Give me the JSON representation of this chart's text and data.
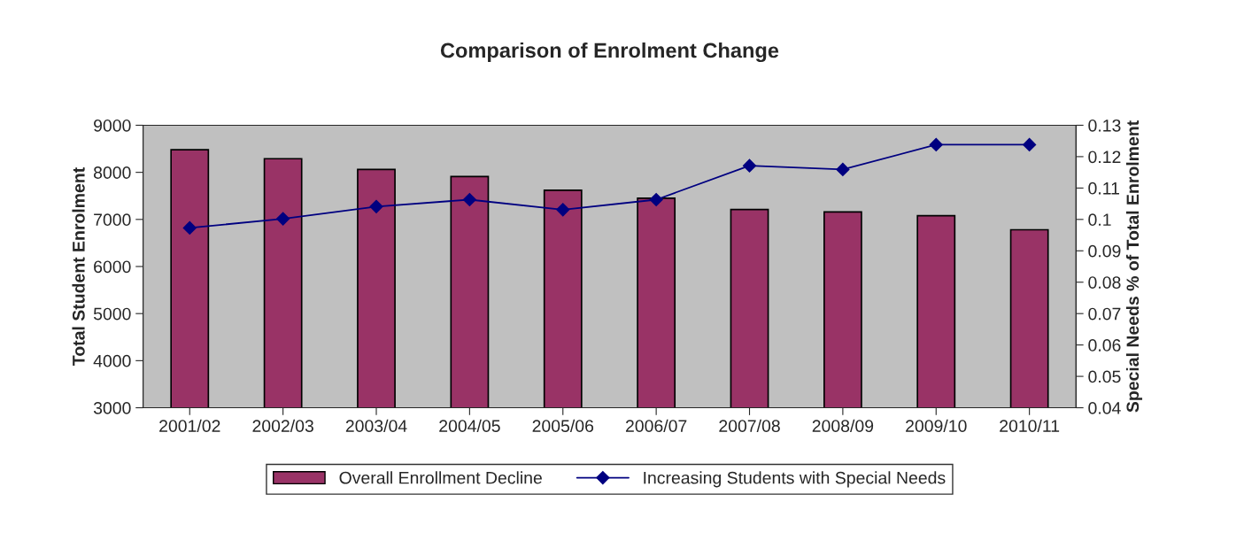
{
  "chart_data": {
    "type": "bar",
    "title": "Comparison of Enrolment Change",
    "ylabel": "Total Student Enrolment",
    "y2label": "Special Needs % of Total Enrolment",
    "categories": [
      "2001/02",
      "2002/03",
      "2003/04",
      "2004/05",
      "2005/06",
      "2006/07",
      "2007/08",
      "2008/09",
      "2009/10",
      "2010/11"
    ],
    "series": [
      {
        "name": "Overall Enrollment Decline",
        "color": "#993366",
        "values": [
          8480,
          8290,
          8060,
          7910,
          7620,
          7450,
          7210,
          7160,
          7080,
          6780
        ]
      },
      {
        "name": "Increasing Students with Special Needs",
        "type": "line",
        "axis": "y2",
        "color": "#000080",
        "marker": "diamond",
        "values": [
          0.0973,
          0.1002,
          0.1041,
          0.1063,
          0.1031,
          0.1063,
          0.1171,
          0.1159,
          0.1238,
          0.1238
        ]
      }
    ],
    "ylim": [
      3000,
      9000
    ],
    "yticks": [
      3000,
      4000,
      5000,
      6000,
      7000,
      8000,
      9000
    ],
    "y2lim": [
      0.04,
      0.13
    ],
    "y2ticks": [
      0.04,
      0.05,
      0.06,
      0.07,
      0.08,
      0.09,
      0.1,
      0.11,
      0.12,
      0.13
    ],
    "grid": false,
    "legend": "bottom"
  }
}
